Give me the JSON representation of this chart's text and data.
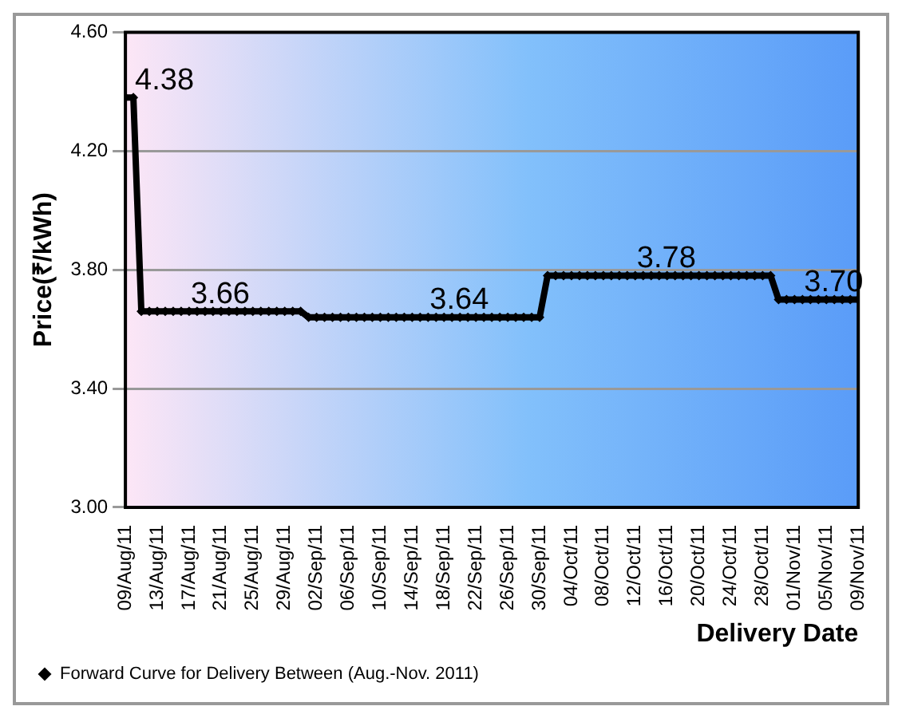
{
  "chart_data": {
    "type": "line",
    "ylabel": "Price(₹/kWh)",
    "xlabel": "Delivery Date",
    "x": [
      "2011-08-09",
      "2011-08-10",
      "2011-08-11",
      "2011-08-12",
      "2011-08-13",
      "2011-08-14",
      "2011-08-15",
      "2011-08-16",
      "2011-08-17",
      "2011-08-18",
      "2011-08-19",
      "2011-08-20",
      "2011-08-21",
      "2011-08-22",
      "2011-08-23",
      "2011-08-24",
      "2011-08-25",
      "2011-08-26",
      "2011-08-27",
      "2011-08-28",
      "2011-08-29",
      "2011-08-30",
      "2011-08-31",
      "2011-09-01",
      "2011-09-02",
      "2011-09-03",
      "2011-09-04",
      "2011-09-05",
      "2011-09-06",
      "2011-09-07",
      "2011-09-08",
      "2011-09-09",
      "2011-09-10",
      "2011-09-11",
      "2011-09-12",
      "2011-09-13",
      "2011-09-14",
      "2011-09-15",
      "2011-09-16",
      "2011-09-17",
      "2011-09-18",
      "2011-09-19",
      "2011-09-20",
      "2011-09-21",
      "2011-09-22",
      "2011-09-23",
      "2011-09-24",
      "2011-09-25",
      "2011-09-26",
      "2011-09-27",
      "2011-09-28",
      "2011-09-29",
      "2011-09-30",
      "2011-10-01",
      "2011-10-02",
      "2011-10-03",
      "2011-10-04",
      "2011-10-05",
      "2011-10-06",
      "2011-10-07",
      "2011-10-08",
      "2011-10-09",
      "2011-10-10",
      "2011-10-11",
      "2011-10-12",
      "2011-10-13",
      "2011-10-14",
      "2011-10-15",
      "2011-10-16",
      "2011-10-17",
      "2011-10-18",
      "2011-10-19",
      "2011-10-20",
      "2011-10-21",
      "2011-10-22",
      "2011-10-23",
      "2011-10-24",
      "2011-10-25",
      "2011-10-26",
      "2011-10-27",
      "2011-10-28",
      "2011-10-29",
      "2011-10-30",
      "2011-10-31",
      "2011-11-01",
      "2011-11-02",
      "2011-11-03",
      "2011-11-04",
      "2011-11-05",
      "2011-11-06",
      "2011-11-07",
      "2011-11-08",
      "2011-11-09"
    ],
    "series": [
      {
        "name": "Forward Curve for Delivery Between (Aug.-Nov. 2011)",
        "color": "#000000",
        "values": [
          4.38,
          4.38,
          3.66,
          3.66,
          3.66,
          3.66,
          3.66,
          3.66,
          3.66,
          3.66,
          3.66,
          3.66,
          3.66,
          3.66,
          3.66,
          3.66,
          3.66,
          3.66,
          3.66,
          3.66,
          3.66,
          3.66,
          3.66,
          3.64,
          3.64,
          3.64,
          3.64,
          3.64,
          3.64,
          3.64,
          3.64,
          3.64,
          3.64,
          3.64,
          3.64,
          3.64,
          3.64,
          3.64,
          3.64,
          3.64,
          3.64,
          3.64,
          3.64,
          3.64,
          3.64,
          3.64,
          3.64,
          3.64,
          3.64,
          3.64,
          3.64,
          3.64,
          3.64,
          3.78,
          3.78,
          3.78,
          3.78,
          3.78,
          3.78,
          3.78,
          3.78,
          3.78,
          3.78,
          3.78,
          3.78,
          3.78,
          3.78,
          3.78,
          3.78,
          3.78,
          3.78,
          3.78,
          3.78,
          3.78,
          3.78,
          3.78,
          3.78,
          3.78,
          3.78,
          3.78,
          3.78,
          3.78,
          3.7,
          3.7,
          3.7,
          3.7,
          3.7,
          3.7,
          3.7,
          3.7,
          3.7,
          3.7,
          3.7
        ]
      }
    ],
    "annotations": [
      {
        "text": "4.38",
        "x": "2011-08-09",
        "y": 4.38
      },
      {
        "text": "3.66",
        "x": "2011-08-16",
        "y": 3.66
      },
      {
        "text": "3.64",
        "x": "2011-09-15",
        "y": 3.64
      },
      {
        "text": "3.78",
        "x": "2011-10-11",
        "y": 3.78
      },
      {
        "text": "3.70",
        "x": "2011-11-01",
        "y": 3.7
      }
    ],
    "xlim": [
      "2011-08-09",
      "2011-11-09"
    ],
    "xticks": [
      {
        "value": "2011-08-09",
        "label": "09/Aug/11"
      },
      {
        "value": "2011-08-13",
        "label": "13/Aug/11"
      },
      {
        "value": "2011-08-17",
        "label": "17/Aug/11"
      },
      {
        "value": "2011-08-21",
        "label": "21/Aug/11"
      },
      {
        "value": "2011-08-25",
        "label": "25/Aug/11"
      },
      {
        "value": "2011-08-29",
        "label": "29/Aug/11"
      },
      {
        "value": "2011-09-02",
        "label": "02/Sep/11"
      },
      {
        "value": "2011-09-06",
        "label": "06/Sep/11"
      },
      {
        "value": "2011-09-10",
        "label": "10/Sep/11"
      },
      {
        "value": "2011-09-14",
        "label": "14/Sep/11"
      },
      {
        "value": "2011-09-18",
        "label": "18/Sep/11"
      },
      {
        "value": "2011-09-22",
        "label": "22/Sep/11"
      },
      {
        "value": "2011-09-26",
        "label": "26/Sep/11"
      },
      {
        "value": "2011-09-30",
        "label": "30/Sep/11"
      },
      {
        "value": "2011-10-04",
        "label": "04/Oct/11"
      },
      {
        "value": "2011-10-08",
        "label": "08/Oct/11"
      },
      {
        "value": "2011-10-12",
        "label": "12/Oct/11"
      },
      {
        "value": "2011-10-16",
        "label": "16/Oct/11"
      },
      {
        "value": "2011-10-20",
        "label": "20/Oct/11"
      },
      {
        "value": "2011-10-24",
        "label": "24/Oct/11"
      },
      {
        "value": "2011-10-28",
        "label": "28/Oct/11"
      },
      {
        "value": "2011-11-01",
        "label": "01/Nov/11"
      },
      {
        "value": "2011-11-05",
        "label": "05/Nov/11"
      },
      {
        "value": "2011-11-09",
        "label": "09/Nov/11"
      }
    ],
    "ylim": [
      3.0,
      4.6
    ],
    "yticks": [
      {
        "value": 3.0,
        "label": "3.00"
      },
      {
        "value": 3.4,
        "label": "3.40"
      },
      {
        "value": 3.8,
        "label": "3.80"
      },
      {
        "value": 4.2,
        "label": "4.20"
      },
      {
        "value": 4.6,
        "label": "4.60"
      }
    ],
    "grid": "y",
    "legend": "bottom left",
    "marker": "diamond",
    "line_style": "solid"
  }
}
